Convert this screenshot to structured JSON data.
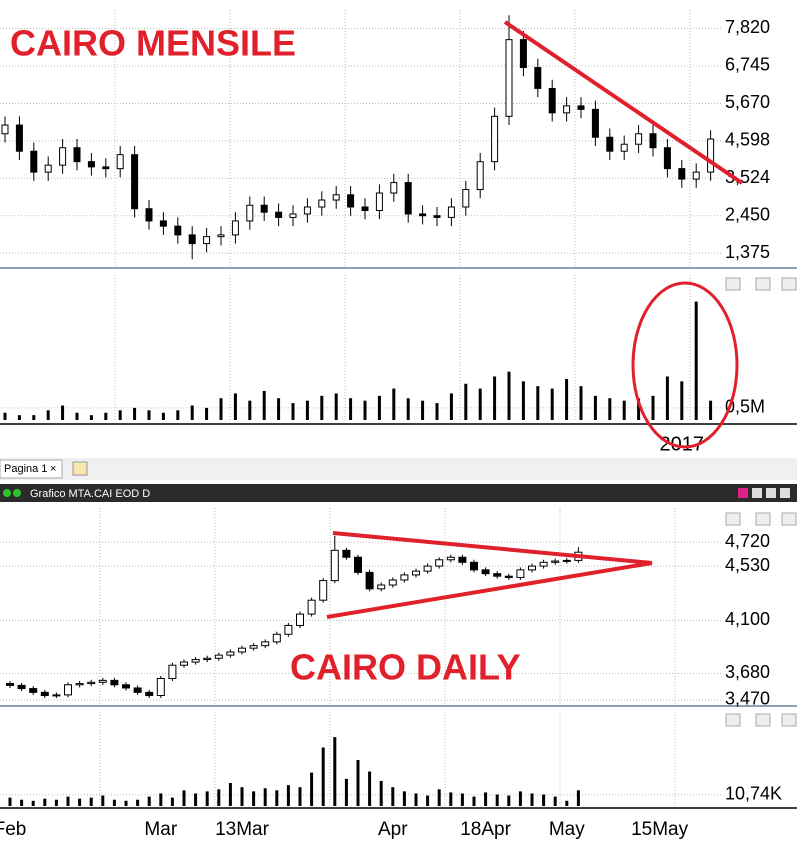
{
  "window": {
    "tab": "Pagina 1",
    "window_title": "Grafico MTA.CAI EOD D"
  },
  "chart_data": [
    {
      "type": "candlestick",
      "title": "CAIRO MENSILE",
      "categories": [
        null,
        null,
        null,
        null,
        null,
        null,
        null,
        null,
        null,
        null,
        null,
        null,
        null,
        null,
        null,
        null,
        null,
        null,
        null,
        null,
        null,
        null,
        null,
        null,
        null,
        null,
        null,
        null,
        null,
        null,
        null,
        null,
        null,
        null,
        null,
        null,
        null,
        null,
        null,
        null,
        null,
        null,
        null,
        null,
        null,
        null,
        null,
        "2017",
        null,
        null
      ],
      "open": [
        4800,
        5050,
        4300,
        3700,
        3900,
        4400,
        4000,
        3850,
        3800,
        4200,
        2650,
        2300,
        2150,
        1900,
        1650,
        1850,
        1900,
        2300,
        2750,
        2550,
        2400,
        2500,
        2700,
        2900,
        3050,
        2700,
        2600,
        3100,
        3400,
        2500,
        2450,
        2400,
        2700,
        3200,
        4000,
        5300,
        7500,
        6700,
        6100,
        5400,
        5600,
        5500,
        4700,
        4300,
        4500,
        4800,
        4400,
        3800,
        3500,
        3700
      ],
      "high": [
        5300,
        5300,
        4550,
        4150,
        4650,
        4650,
        4250,
        4100,
        4450,
        4450,
        2900,
        2550,
        2400,
        2150,
        2100,
        2150,
        2550,
        3000,
        3000,
        2800,
        2750,
        2950,
        3150,
        3300,
        3300,
        2950,
        3350,
        3650,
        3650,
        2750,
        2700,
        2950,
        3450,
        4250,
        5550,
        8200,
        7750,
        6950,
        6350,
        5850,
        5850,
        5750,
        4950,
        4750,
        5050,
        5050,
        4650,
        4050,
        3950,
        4900
      ],
      "low": [
        4550,
        4050,
        3450,
        3450,
        3650,
        3750,
        3600,
        3550,
        3550,
        2400,
        2050,
        1900,
        1650,
        1200,
        1400,
        1600,
        1650,
        2050,
        2300,
        2150,
        2150,
        2250,
        2450,
        2650,
        2450,
        2350,
        2350,
        2850,
        2250,
        2200,
        2150,
        2150,
        2450,
        2950,
        3750,
        5050,
        6450,
        5850,
        5150,
        5150,
        5250,
        4450,
        4050,
        4050,
        4250,
        4150,
        3550,
        3250,
        3250,
        3450
      ],
      "close": [
        5050,
        4300,
        3700,
        3900,
        4400,
        4000,
        3850,
        3800,
        4200,
        2650,
        2300,
        2150,
        1900,
        1650,
        1850,
        1900,
        2300,
        2750,
        2550,
        2400,
        2500,
        2700,
        2900,
        3050,
        2700,
        2600,
        3100,
        3400,
        2500,
        2450,
        2400,
        2700,
        3200,
        4000,
        5300,
        7500,
        6700,
        6100,
        5400,
        5600,
        5500,
        4700,
        4300,
        4500,
        4800,
        4400,
        3800,
        3500,
        3700,
        4650
      ],
      "volume": [
        300000,
        200000,
        200000,
        400000,
        600000,
        300000,
        200000,
        300000,
        400000,
        500000,
        400000,
        300000,
        400000,
        600000,
        500000,
        900000,
        1100000,
        800000,
        1200000,
        900000,
        700000,
        800000,
        1000000,
        1100000,
        900000,
        800000,
        1000000,
        1300000,
        900000,
        800000,
        700000,
        1100000,
        1500000,
        1300000,
        1800000,
        2000000,
        1600000,
        1400000,
        1300000,
        1700000,
        1400000,
        1000000,
        900000,
        800000,
        900000,
        1000000,
        1800000,
        1600000,
        4900000,
        800000
      ],
      "ylim": [
        950,
        8350
      ],
      "yticks": [
        {
          "value": 7820,
          "label": "7,820"
        },
        {
          "value": 6745,
          "label": "6,745"
        },
        {
          "value": 5670,
          "label": "5,670"
        },
        {
          "value": 4598,
          "label": "4,598"
        },
        {
          "value": 3524,
          "label": "3,524"
        },
        {
          "value": 2450,
          "label": "2,450"
        },
        {
          "value": 1375,
          "label": "1,375"
        }
      ],
      "volume_ylim": [
        0,
        6000000
      ],
      "volume_yticks": [
        {
          "value": 500000,
          "label": "0,5M"
        }
      ],
      "up_color": "#ffffff",
      "down_color": "#000000",
      "grid": true
    },
    {
      "type": "candlestick",
      "title": "CAIRO DAILY",
      "categories": [
        "Feb",
        null,
        null,
        null,
        null,
        null,
        null,
        null,
        null,
        null,
        null,
        null,
        null,
        "Mar",
        null,
        null,
        null,
        null,
        null,
        null,
        "13Mar",
        null,
        null,
        null,
        null,
        null,
        null,
        null,
        null,
        null,
        null,
        null,
        null,
        "Apr",
        null,
        null,
        null,
        null,
        null,
        null,
        null,
        "18Apr",
        null,
        null,
        null,
        null,
        null,
        null,
        "May",
        null,
        null,
        null,
        null,
        null,
        null,
        null,
        "15May",
        null,
        null,
        null
      ],
      "open": [
        3600,
        3585,
        3560,
        3530,
        3505,
        3510,
        3590,
        3600,
        3610,
        3625,
        3590,
        3565,
        3530,
        3505,
        3640,
        3745,
        3770,
        3790,
        3800,
        3825,
        3850,
        3880,
        3900,
        3930,
        3990,
        4060,
        4150,
        4260,
        4415,
        4655,
        4600,
        4480,
        4350,
        4380,
        4420,
        4460,
        4490,
        4530,
        4580,
        4600,
        4560,
        4500,
        4470,
        4450,
        4440,
        4500,
        4530,
        4560,
        4570,
        4575,
        null,
        null,
        null,
        null,
        null,
        null,
        null,
        null,
        null,
        null
      ],
      "high": [
        3620,
        3605,
        3580,
        3550,
        3530,
        3610,
        3620,
        3630,
        3645,
        3645,
        3610,
        3585,
        3550,
        3660,
        3765,
        3790,
        3810,
        3820,
        3845,
        3870,
        3900,
        3920,
        3950,
        4010,
        4080,
        4170,
        4280,
        4435,
        4770,
        4675,
        4620,
        4500,
        4400,
        4440,
        4480,
        4510,
        4550,
        4600,
        4620,
        4620,
        4580,
        4520,
        4490,
        4470,
        4520,
        4550,
        4580,
        4590,
        4595,
        4680,
        null,
        null,
        null,
        null,
        null,
        null,
        null,
        null,
        null,
        null
      ],
      "low": [
        3565,
        3540,
        3510,
        3485,
        3485,
        3490,
        3570,
        3580,
        3590,
        3570,
        3545,
        3510,
        3485,
        3485,
        3620,
        3725,
        3750,
        3770,
        3780,
        3805,
        3830,
        3860,
        3880,
        3910,
        3970,
        4040,
        4130,
        4240,
        4395,
        4580,
        4460,
        4330,
        4330,
        4360,
        4400,
        4440,
        4470,
        4510,
        4560,
        4540,
        4480,
        4450,
        4430,
        4420,
        4420,
        4480,
        4510,
        4540,
        4550,
        4555,
        null,
        null,
        null,
        null,
        null,
        null,
        null,
        null,
        null,
        null
      ],
      "close": [
        3585,
        3560,
        3530,
        3505,
        3510,
        3590,
        3600,
        3610,
        3625,
        3590,
        3565,
        3530,
        3505,
        3640,
        3745,
        3770,
        3790,
        3800,
        3825,
        3850,
        3880,
        3900,
        3930,
        3990,
        4060,
        4150,
        4260,
        4415,
        4655,
        4600,
        4480,
        4350,
        4380,
        4420,
        4460,
        4490,
        4530,
        4580,
        4600,
        4560,
        4500,
        4470,
        4450,
        4440,
        4500,
        4530,
        4560,
        4570,
        4575,
        4640,
        null,
        null,
        null,
        null,
        null,
        null,
        null,
        null,
        null,
        null
      ],
      "volume": [
        8000,
        6000,
        5000,
        7000,
        6000,
        9000,
        7000,
        8000,
        10000,
        6000,
        5000,
        6000,
        9000,
        12000,
        8000,
        15000,
        12000,
        14000,
        16000,
        22000,
        18000,
        14000,
        17000,
        15000,
        20000,
        18000,
        32000,
        56000,
        66000,
        26000,
        44000,
        33000,
        24000,
        18000,
        14000,
        12000,
        10000,
        16000,
        13000,
        12000,
        9000,
        13000,
        11000,
        10000,
        14000,
        12000,
        11000,
        9000,
        5000,
        15000,
        null,
        null,
        null,
        null,
        null,
        null,
        null,
        null,
        null,
        null
      ],
      "ylim": [
        3430,
        4990
      ],
      "yticks": [
        {
          "value": 4720,
          "label": "4,720"
        },
        {
          "value": 4530,
          "label": "4,530"
        },
        {
          "value": 4100,
          "label": "4,100"
        },
        {
          "value": 3680,
          "label": "3,680"
        },
        {
          "value": 3470,
          "label": "3,470"
        }
      ],
      "volume_ylim": [
        0,
        90000
      ],
      "volume_yticks": [
        {
          "value": 10740,
          "label": "10,74K"
        }
      ],
      "up_color": "#ffffff",
      "down_color": "#000000",
      "grid": true
    }
  ]
}
